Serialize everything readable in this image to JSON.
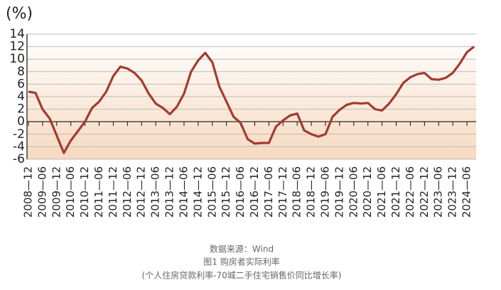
{
  "chart_data": {
    "type": "line",
    "y_label": "(%)",
    "categories": [
      "2008—12",
      null,
      "2009—06",
      null,
      "2009—12",
      null,
      "2010—06",
      null,
      "2010—12",
      null,
      "2011—06",
      null,
      "2011—12",
      null,
      "2012—06",
      null,
      "2012—12",
      null,
      "2013—06",
      null,
      "2013—12",
      null,
      "2014—06",
      null,
      "2014—12",
      null,
      "2015—06",
      null,
      "2015—12",
      null,
      "2016—06",
      null,
      "2016—12",
      null,
      "2017—06",
      null,
      "2017—12",
      null,
      "2018—06",
      null,
      "2018—12",
      null,
      "2019—06",
      null,
      "2019—12",
      null,
      "2020—06",
      null,
      "2020—12",
      null,
      "2021—06",
      null,
      "2021—12",
      null,
      "2022—06",
      null,
      "2022—12",
      null,
      "2023—06",
      null,
      "2023—12",
      null,
      "2024—06",
      null
    ],
    "series": [
      {
        "name": "个人住房贷款利率-70城二手住宅销售价同比增长率",
        "color": "#a23b2f",
        "values": [
          4.8,
          4.6,
          2.0,
          0.5,
          -2.2,
          -5.0,
          -3.0,
          -1.5,
          0,
          2.2,
          3.2,
          4.8,
          7.3,
          8.8,
          8.5,
          7.8,
          6.6,
          4.5,
          2.9,
          2.2,
          1.2,
          2.4,
          4.5,
          8.0,
          9.8,
          11.0,
          9.5,
          5.6,
          3.2,
          0.8,
          -0.2,
          -2.8,
          -3.5,
          -3.4,
          -3.4,
          -0.8,
          0.2,
          1.0,
          1.3,
          -1.4,
          -2.0,
          -2.4,
          -2.0,
          0.8,
          1.9,
          2.7,
          3.0,
          2.9,
          3.0,
          2.0,
          1.8,
          2.9,
          4.4,
          6.2,
          7.1,
          7.6,
          7.8,
          6.8,
          6.7,
          7.0,
          7.8,
          9.3,
          11.1,
          12.0
        ]
      }
    ],
    "ylim": [
      -6,
      14
    ],
    "yticks": [
      -6,
      -4,
      -2,
      0,
      2,
      4,
      6,
      8,
      10,
      12,
      14
    ],
    "grid": true,
    "source": "数据来源：Wind",
    "caption": "图1 购房者实际利率",
    "note": "(个人住房贷款利率-70城二手住宅销售价同比增长率)"
  }
}
